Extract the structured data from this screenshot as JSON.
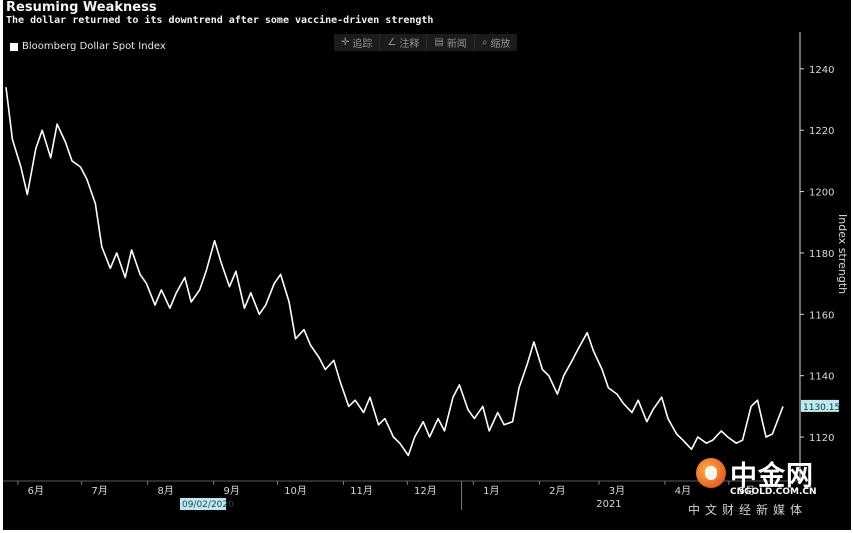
{
  "header": {
    "title": "Resuming Weakness",
    "subtitle": "The dollar returned to its downtrend after some vaccine-driven strength"
  },
  "toolbar": {
    "items": [
      {
        "icon": "crosshair-icon",
        "label": "追踪"
      },
      {
        "icon": "pencil-icon",
        "label": "注释"
      },
      {
        "icon": "news-icon",
        "label": "新闻"
      },
      {
        "icon": "zoom-icon",
        "label": "缩放"
      }
    ]
  },
  "watermark": {
    "name": "中金网",
    "url": "CNGOLD.COM.CN",
    "tagline": "中文财经新媒体"
  },
  "chart_data": {
    "type": "line",
    "title": "Resuming Weakness",
    "subtitle": "The dollar returned to its downtrend after some vaccine-driven strength",
    "ylabel": "Index strength",
    "xlabel": "",
    "ylim": [
      1106,
      1252
    ],
    "yticks": [
      1120,
      1140,
      1160,
      1180,
      1200,
      1220,
      1240
    ],
    "grid": false,
    "legend_position": "top-left",
    "colors": {
      "line": "#ffffff",
      "background": "#000000",
      "axis": "#d9d9d9",
      "last_value_bg": "#bfe9ee"
    },
    "x_ticks": [
      {
        "label": "6月",
        "x": "2020-06-15"
      },
      {
        "label": "7月",
        "x": "2020-07-15"
      },
      {
        "label": "8月",
        "x": "2020-08-15"
      },
      {
        "label": "9月",
        "x": "2020-09-15"
      },
      {
        "label": "10月",
        "x": "2020-10-15"
      },
      {
        "label": "11月",
        "x": "2020-11-15"
      },
      {
        "label": "12月",
        "x": "2020-12-15"
      },
      {
        "label": "1月",
        "x": "2021-01-15"
      },
      {
        "label": "2月",
        "x": "2021-02-15"
      },
      {
        "label": "3月",
        "x": "2021-03-15"
      },
      {
        "label": "4月",
        "x": "2021-04-15"
      },
      {
        "label": "5月",
        "x": "2021-05-15"
      }
    ],
    "year_labels": [
      {
        "label": "2020",
        "x": "2020-09-02"
      },
      {
        "label": "2021",
        "x": "2021-03-15"
      }
    ],
    "cursor_date_label": "09/02/2020",
    "last_value_label": "1130.15",
    "series": [
      {
        "name": "Bloomberg Dollar Spot Index",
        "x": [
          "2020-06-01",
          "2020-06-04",
          "2020-06-08",
          "2020-06-11",
          "2020-06-15",
          "2020-06-18",
          "2020-06-22",
          "2020-06-25",
          "2020-06-29",
          "2020-07-02",
          "2020-07-06",
          "2020-07-09",
          "2020-07-13",
          "2020-07-16",
          "2020-07-20",
          "2020-07-23",
          "2020-07-27",
          "2020-07-30",
          "2020-08-03",
          "2020-08-06",
          "2020-08-10",
          "2020-08-13",
          "2020-08-17",
          "2020-08-20",
          "2020-08-24",
          "2020-08-27",
          "2020-08-31",
          "2020-09-03",
          "2020-09-07",
          "2020-09-10",
          "2020-09-14",
          "2020-09-17",
          "2020-09-21",
          "2020-09-24",
          "2020-09-28",
          "2020-10-01",
          "2020-10-05",
          "2020-10-08",
          "2020-10-12",
          "2020-10-15",
          "2020-10-19",
          "2020-10-22",
          "2020-10-26",
          "2020-10-29",
          "2020-11-02",
          "2020-11-05",
          "2020-11-09",
          "2020-11-12",
          "2020-11-16",
          "2020-11-19",
          "2020-11-23",
          "2020-11-26",
          "2020-11-30",
          "2020-12-03",
          "2020-12-07",
          "2020-12-10",
          "2020-12-14",
          "2020-12-17",
          "2020-12-21",
          "2020-12-24",
          "2020-12-28",
          "2020-12-31",
          "2021-01-04",
          "2021-01-07",
          "2021-01-11",
          "2021-01-14",
          "2021-01-18",
          "2021-01-21",
          "2021-01-25",
          "2021-01-28",
          "2021-02-01",
          "2021-02-04",
          "2021-02-08",
          "2021-02-11",
          "2021-02-15",
          "2021-02-18",
          "2021-02-22",
          "2021-02-25",
          "2021-03-01",
          "2021-03-04",
          "2021-03-08",
          "2021-03-11",
          "2021-03-15",
          "2021-03-18",
          "2021-03-22",
          "2021-03-25",
          "2021-03-29",
          "2021-04-01",
          "2021-04-05",
          "2021-04-08",
          "2021-04-12",
          "2021-04-15",
          "2021-04-19",
          "2021-04-22",
          "2021-04-26",
          "2021-04-29",
          "2021-05-03",
          "2021-05-06",
          "2021-05-10",
          "2021-05-13",
          "2021-05-17",
          "2021-05-20",
          "2021-05-24",
          "2021-05-27",
          "2021-06-01"
        ],
        "values": [
          1234,
          1217,
          1208,
          1199,
          1214,
          1220,
          1211,
          1222,
          1216,
          1210,
          1208,
          1204,
          1196,
          1182,
          1175,
          1180,
          1172,
          1181,
          1173,
          1170,
          1163,
          1168,
          1162,
          1167,
          1172,
          1164,
          1168,
          1174,
          1184,
          1177,
          1169,
          1174,
          1162,
          1167,
          1160,
          1163,
          1170,
          1173,
          1164,
          1152,
          1155,
          1150,
          1146,
          1142,
          1145,
          1138,
          1130,
          1132,
          1128,
          1133,
          1124,
          1126,
          1120,
          1118,
          1114,
          1120,
          1125,
          1120,
          1126,
          1122,
          1133,
          1137,
          1129,
          1126,
          1130,
          1122,
          1128,
          1124,
          1125,
          1136,
          1144,
          1151,
          1142,
          1140,
          1134,
          1140,
          1145,
          1149,
          1154,
          1148,
          1142,
          1136,
          1134,
          1131,
          1128,
          1132,
          1125,
          1129,
          1133,
          1126,
          1121,
          1119,
          1116,
          1120,
          1118,
          1119,
          1122,
          1120,
          1118,
          1119,
          1130,
          1132,
          1120,
          1121,
          1130
        ]
      }
    ]
  }
}
